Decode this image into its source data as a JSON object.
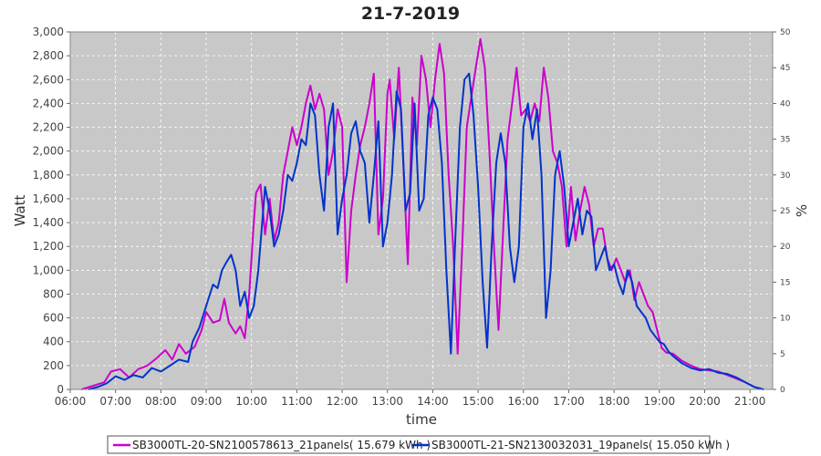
{
  "colors": {
    "plot_background": "#c8c8c8",
    "grid": "#ffffff",
    "series_1": "#cc00cc",
    "series_2": "#0033cc"
  },
  "chart_data": {
    "type": "line",
    "title": "21-7-2019",
    "xlabel": "time",
    "ylabel": "Watt",
    "y2label": "%",
    "xlim": [
      6.0,
      21.5
    ],
    "ylim": [
      0,
      3000
    ],
    "y2lim": [
      0,
      50
    ],
    "x_tick_values": [
      6,
      7,
      8,
      9,
      10,
      11,
      12,
      13,
      14,
      15,
      16,
      17,
      18,
      19,
      20,
      21
    ],
    "x_ticks": [
      "06:00",
      "07:00",
      "08:00",
      "09:00",
      "10:00",
      "11:00",
      "12:00",
      "13:00",
      "14:00",
      "15:00",
      "16:00",
      "17:00",
      "18:00",
      "19:00",
      "20:00",
      "21:00"
    ],
    "y_tick_values": [
      0,
      200,
      400,
      600,
      800,
      1000,
      1200,
      1400,
      1600,
      1800,
      2000,
      2200,
      2400,
      2600,
      2800,
      3000
    ],
    "y_ticks": [
      "0",
      "200",
      "400",
      "600",
      "800",
      "1,000",
      "1,200",
      "1,400",
      "1,600",
      "1,800",
      "2,000",
      "2,200",
      "2,400",
      "2,600",
      "2,800",
      "3,000"
    ],
    "y2_tick_values": [
      0,
      5,
      10,
      15,
      20,
      25,
      30,
      35,
      40,
      45,
      50
    ],
    "y2_ticks": [
      "0",
      "5",
      "10",
      "15",
      "20",
      "25",
      "30",
      "35",
      "40",
      "45",
      "50"
    ],
    "grid": true,
    "legend_position": "bottom",
    "series": [
      {
        "name": "SB3000TL-20-SN2100578613_21panels( 15.679 kWh )",
        "points": [
          [
            6.25,
            0
          ],
          [
            6.5,
            30
          ],
          [
            6.75,
            60
          ],
          [
            6.9,
            150
          ],
          [
            7.1,
            170
          ],
          [
            7.3,
            100
          ],
          [
            7.5,
            170
          ],
          [
            7.7,
            200
          ],
          [
            7.9,
            260
          ],
          [
            8.1,
            330
          ],
          [
            8.25,
            250
          ],
          [
            8.4,
            380
          ],
          [
            8.55,
            300
          ],
          [
            8.75,
            360
          ],
          [
            8.9,
            500
          ],
          [
            9.0,
            650
          ],
          [
            9.15,
            560
          ],
          [
            9.3,
            580
          ],
          [
            9.4,
            760
          ],
          [
            9.5,
            560
          ],
          [
            9.65,
            470
          ],
          [
            9.75,
            530
          ],
          [
            9.85,
            430
          ],
          [
            9.95,
            800
          ],
          [
            10.05,
            1400
          ],
          [
            10.1,
            1650
          ],
          [
            10.2,
            1720
          ],
          [
            10.3,
            1300
          ],
          [
            10.4,
            1600
          ],
          [
            10.5,
            1250
          ],
          [
            10.6,
            1400
          ],
          [
            10.7,
            1800
          ],
          [
            10.8,
            2000
          ],
          [
            10.9,
            2200
          ],
          [
            11.0,
            2050
          ],
          [
            11.1,
            2200
          ],
          [
            11.2,
            2400
          ],
          [
            11.3,
            2550
          ],
          [
            11.4,
            2350
          ],
          [
            11.5,
            2480
          ],
          [
            11.6,
            2350
          ],
          [
            11.7,
            1800
          ],
          [
            11.8,
            2000
          ],
          [
            11.9,
            2350
          ],
          [
            12.0,
            2200
          ],
          [
            12.1,
            900
          ],
          [
            12.2,
            1500
          ],
          [
            12.3,
            1800
          ],
          [
            12.4,
            2050
          ],
          [
            12.5,
            2200
          ],
          [
            12.6,
            2400
          ],
          [
            12.7,
            2650
          ],
          [
            12.8,
            1300
          ],
          [
            12.9,
            1600
          ],
          [
            13.0,
            2480
          ],
          [
            13.05,
            2600
          ],
          [
            13.15,
            2100
          ],
          [
            13.25,
            2700
          ],
          [
            13.35,
            1900
          ],
          [
            13.45,
            1050
          ],
          [
            13.55,
            2450
          ],
          [
            13.65,
            2050
          ],
          [
            13.75,
            2800
          ],
          [
            13.85,
            2600
          ],
          [
            13.95,
            2200
          ],
          [
            14.05,
            2600
          ],
          [
            14.15,
            2900
          ],
          [
            14.25,
            2650
          ],
          [
            14.35,
            1800
          ],
          [
            14.45,
            1200
          ],
          [
            14.55,
            300
          ],
          [
            14.65,
            1200
          ],
          [
            14.75,
            2200
          ],
          [
            14.85,
            2450
          ],
          [
            14.95,
            2700
          ],
          [
            15.05,
            2940
          ],
          [
            15.15,
            2700
          ],
          [
            15.25,
            2000
          ],
          [
            15.35,
            1200
          ],
          [
            15.45,
            500
          ],
          [
            15.55,
            1300
          ],
          [
            15.65,
            2100
          ],
          [
            15.75,
            2400
          ],
          [
            15.85,
            2700
          ],
          [
            15.95,
            2300
          ],
          [
            16.05,
            2350
          ],
          [
            16.15,
            2250
          ],
          [
            16.25,
            2400
          ],
          [
            16.35,
            2250
          ],
          [
            16.45,
            2700
          ],
          [
            16.55,
            2450
          ],
          [
            16.65,
            2000
          ],
          [
            16.75,
            1900
          ],
          [
            16.85,
            1700
          ],
          [
            16.95,
            1200
          ],
          [
            17.05,
            1700
          ],
          [
            17.15,
            1250
          ],
          [
            17.25,
            1500
          ],
          [
            17.35,
            1700
          ],
          [
            17.45,
            1550
          ],
          [
            17.55,
            1200
          ],
          [
            17.65,
            1350
          ],
          [
            17.75,
            1350
          ],
          [
            17.85,
            1100
          ],
          [
            17.95,
            1000
          ],
          [
            18.05,
            1100
          ],
          [
            18.15,
            1000
          ],
          [
            18.25,
            900
          ],
          [
            18.35,
            1000
          ],
          [
            18.45,
            750
          ],
          [
            18.55,
            900
          ],
          [
            18.65,
            800
          ],
          [
            18.75,
            700
          ],
          [
            18.85,
            650
          ],
          [
            18.95,
            500
          ],
          [
            19.05,
            350
          ],
          [
            19.15,
            310
          ],
          [
            19.3,
            300
          ],
          [
            19.5,
            240
          ],
          [
            19.7,
            200
          ],
          [
            19.9,
            170
          ],
          [
            20.1,
            160
          ],
          [
            20.3,
            150
          ],
          [
            20.5,
            120
          ],
          [
            20.7,
            90
          ],
          [
            20.9,
            60
          ],
          [
            21.1,
            20
          ],
          [
            21.3,
            0
          ]
        ]
      },
      {
        "name": "SB3000TL-21-SN2130032031_19panels( 15.050 kWh )",
        "points": [
          [
            6.4,
            0
          ],
          [
            6.6,
            20
          ],
          [
            6.8,
            50
          ],
          [
            7.0,
            110
          ],
          [
            7.2,
            80
          ],
          [
            7.4,
            120
          ],
          [
            7.6,
            100
          ],
          [
            7.8,
            180
          ],
          [
            8.0,
            150
          ],
          [
            8.2,
            200
          ],
          [
            8.4,
            250
          ],
          [
            8.6,
            230
          ],
          [
            8.7,
            400
          ],
          [
            8.85,
            520
          ],
          [
            9.0,
            700
          ],
          [
            9.15,
            880
          ],
          [
            9.25,
            850
          ],
          [
            9.35,
            1000
          ],
          [
            9.45,
            1070
          ],
          [
            9.55,
            1130
          ],
          [
            9.65,
            1000
          ],
          [
            9.75,
            700
          ],
          [
            9.85,
            820
          ],
          [
            9.95,
            600
          ],
          [
            10.05,
            700
          ],
          [
            10.15,
            1000
          ],
          [
            10.3,
            1700
          ],
          [
            10.4,
            1500
          ],
          [
            10.5,
            1200
          ],
          [
            10.6,
            1300
          ],
          [
            10.7,
            1500
          ],
          [
            10.8,
            1800
          ],
          [
            10.9,
            1750
          ],
          [
            11.0,
            1900
          ],
          [
            11.1,
            2100
          ],
          [
            11.2,
            2050
          ],
          [
            11.3,
            2400
          ],
          [
            11.4,
            2300
          ],
          [
            11.5,
            1800
          ],
          [
            11.6,
            1500
          ],
          [
            11.7,
            2200
          ],
          [
            11.8,
            2400
          ],
          [
            11.9,
            1300
          ],
          [
            12.0,
            1600
          ],
          [
            12.1,
            1800
          ],
          [
            12.2,
            2150
          ],
          [
            12.3,
            2250
          ],
          [
            12.4,
            2000
          ],
          [
            12.5,
            1900
          ],
          [
            12.6,
            1400
          ],
          [
            12.7,
            1800
          ],
          [
            12.8,
            2250
          ],
          [
            12.9,
            1200
          ],
          [
            13.0,
            1400
          ],
          [
            13.1,
            1800
          ],
          [
            13.2,
            2500
          ],
          [
            13.3,
            2350
          ],
          [
            13.4,
            1500
          ],
          [
            13.5,
            1650
          ],
          [
            13.6,
            2400
          ],
          [
            13.7,
            1500
          ],
          [
            13.8,
            1600
          ],
          [
            13.9,
            2300
          ],
          [
            14.0,
            2450
          ],
          [
            14.1,
            2350
          ],
          [
            14.2,
            1900
          ],
          [
            14.3,
            1000
          ],
          [
            14.4,
            300
          ],
          [
            14.5,
            1300
          ],
          [
            14.6,
            2200
          ],
          [
            14.7,
            2600
          ],
          [
            14.8,
            2650
          ],
          [
            14.9,
            2300
          ],
          [
            15.0,
            1700
          ],
          [
            15.1,
            900
          ],
          [
            15.2,
            350
          ],
          [
            15.3,
            1200
          ],
          [
            15.4,
            1900
          ],
          [
            15.5,
            2150
          ],
          [
            15.6,
            1900
          ],
          [
            15.7,
            1200
          ],
          [
            15.8,
            900
          ],
          [
            15.9,
            1200
          ],
          [
            16.0,
            2200
          ],
          [
            16.1,
            2400
          ],
          [
            16.2,
            2100
          ],
          [
            16.3,
            2350
          ],
          [
            16.4,
            1800
          ],
          [
            16.5,
            600
          ],
          [
            16.6,
            1000
          ],
          [
            16.7,
            1800
          ],
          [
            16.8,
            2000
          ],
          [
            16.9,
            1700
          ],
          [
            17.0,
            1200
          ],
          [
            17.1,
            1400
          ],
          [
            17.2,
            1600
          ],
          [
            17.3,
            1300
          ],
          [
            17.4,
            1500
          ],
          [
            17.5,
            1450
          ],
          [
            17.6,
            1000
          ],
          [
            17.7,
            1100
          ],
          [
            17.8,
            1200
          ],
          [
            17.9,
            1000
          ],
          [
            18.0,
            1050
          ],
          [
            18.1,
            900
          ],
          [
            18.2,
            800
          ],
          [
            18.3,
            1000
          ],
          [
            18.4,
            900
          ],
          [
            18.5,
            700
          ],
          [
            18.6,
            650
          ],
          [
            18.7,
            600
          ],
          [
            18.8,
            500
          ],
          [
            18.9,
            450
          ],
          [
            19.0,
            400
          ],
          [
            19.1,
            380
          ],
          [
            19.2,
            320
          ],
          [
            19.3,
            280
          ],
          [
            19.5,
            220
          ],
          [
            19.7,
            180
          ],
          [
            19.9,
            160
          ],
          [
            20.1,
            170
          ],
          [
            20.3,
            140
          ],
          [
            20.5,
            130
          ],
          [
            20.7,
            100
          ],
          [
            20.9,
            60
          ],
          [
            21.1,
            20
          ],
          [
            21.3,
            0
          ]
        ]
      }
    ]
  }
}
